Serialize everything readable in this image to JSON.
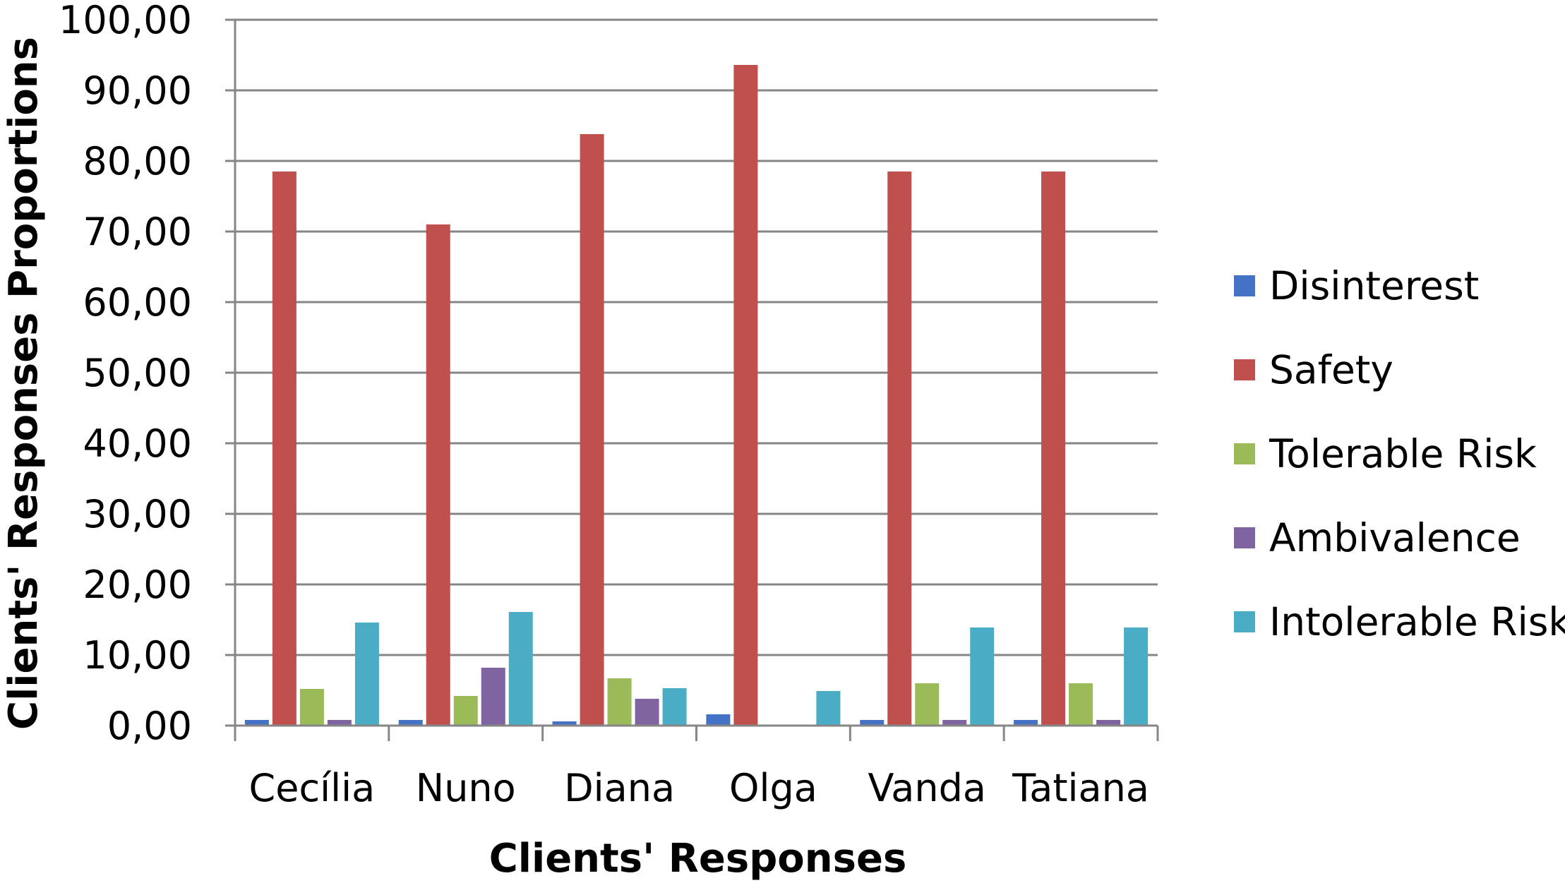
{
  "chart_data": {
    "type": "bar",
    "title": "",
    "xlabel": "Clients' Responses",
    "ylabel": "Clients' Responses Proportions",
    "categories": [
      "Cecília",
      "Nuno",
      "Diana",
      "Olga",
      "Vanda",
      "Tatiana"
    ],
    "ylim": [
      0,
      100
    ],
    "ytick_step": 10,
    "ytick_labels": [
      "0,00",
      "10,00",
      "20,00",
      "30,00",
      "40,00",
      "50,00",
      "60,00",
      "70,00",
      "80,00",
      "90,00",
      "100,00"
    ],
    "grid": true,
    "legend_position": "right",
    "series": [
      {
        "name": "Disinterest",
        "color": "#4472C4",
        "values": [
          0.8,
          0.8,
          0.6,
          1.6,
          0.8,
          0.8
        ]
      },
      {
        "name": "Safety",
        "color": "#C0504D",
        "values": [
          78.5,
          71.0,
          83.8,
          93.6,
          78.5,
          78.5
        ]
      },
      {
        "name": "Tolerable Risk",
        "color": "#9BBB59",
        "values": [
          5.2,
          4.2,
          6.7,
          0,
          6.0,
          6.0
        ]
      },
      {
        "name": "Ambivalence",
        "color": "#8064A2",
        "values": [
          0.8,
          8.2,
          3.8,
          0,
          0.8,
          0.8
        ]
      },
      {
        "name": "Intolerable Risk",
        "color": "#4BACC6",
        "values": [
          14.6,
          16.1,
          5.3,
          4.9,
          13.9,
          13.9
        ]
      }
    ]
  }
}
